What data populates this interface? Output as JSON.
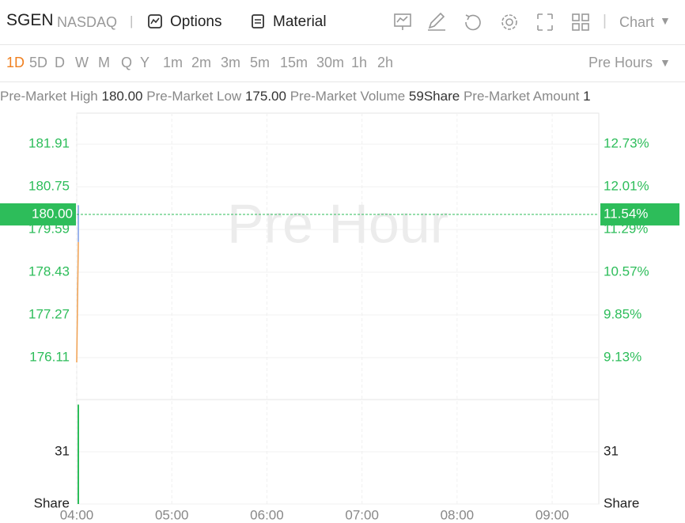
{
  "header": {
    "symbol": "SGEN",
    "exchange": "NASDAQ",
    "separator": "|",
    "buttons": [
      "Options",
      "Material"
    ],
    "chart_menu": "Chart"
  },
  "periods": {
    "items": [
      "1D",
      "5D",
      "D",
      "W",
      "M",
      "Q",
      "Y",
      "1m",
      "2m",
      "3m",
      "5m",
      "15m",
      "30m",
      "1h",
      "2h"
    ],
    "session": "Pre Hours"
  },
  "stats": [
    {
      "label": "Pre-Market High",
      "value": "180.00"
    },
    {
      "label": "Pre-Market Low",
      "value": "175.00"
    },
    {
      "label": "Pre-Market Volume",
      "value": "59Share"
    },
    {
      "label": "Pre-Market Amount",
      "value": "1"
    }
  ],
  "chart_data": [
    {
      "type": "line",
      "watermark": "Pre Hour",
      "grid": true,
      "xlim": [
        4,
        9.49
      ],
      "xticks": [
        {
          "value": 4,
          "label": "04:00"
        },
        {
          "value": 5,
          "label": "05:00"
        },
        {
          "value": 6,
          "label": "06:00"
        },
        {
          "value": 7,
          "label": "07:00"
        },
        {
          "value": 8,
          "label": "08:00"
        },
        {
          "value": 9,
          "label": "09:00"
        }
      ],
      "ylim": [
        174.97,
        182.75
      ],
      "yticks": [
        181.91,
        180.75,
        179.59,
        178.43,
        177.27,
        176.11
      ],
      "y2lim": [
        8.42,
        13.25
      ],
      "y2ticks": [
        {
          "value": 12.73,
          "label": "12.73%"
        },
        {
          "value": 12.01,
          "label": "12.01%"
        },
        {
          "value": 11.29,
          "label": "11.29%"
        },
        {
          "value": 10.57,
          "label": "10.57%"
        },
        {
          "value": 9.85,
          "label": "9.85%"
        },
        {
          "value": 9.13,
          "label": "9.13%"
        }
      ],
      "series": [
        {
          "color": "#f0a050",
          "x": [
            4,
            4.017
          ],
          "values": [
            175.98,
            179.25
          ]
        },
        {
          "color": "#7a9be6",
          "x": [
            4.017,
            4.017
          ],
          "values": [
            179.25,
            180.25
          ]
        }
      ],
      "current": {
        "value": 180,
        "label": "180.00",
        "percent": {
          "value": 11.54,
          "label": "11.54%"
        },
        "color": "#2dbd5a"
      }
    },
    {
      "type": "bar",
      "color": "#2dbd5a",
      "x": [
        4
      ],
      "values": [
        59
      ],
      "xlim": [
        4,
        9.49
      ],
      "ylim": [
        0,
        62
      ],
      "yticks": [
        31,
        {
          "value": 0,
          "label": "Share"
        }
      ]
    }
  ]
}
